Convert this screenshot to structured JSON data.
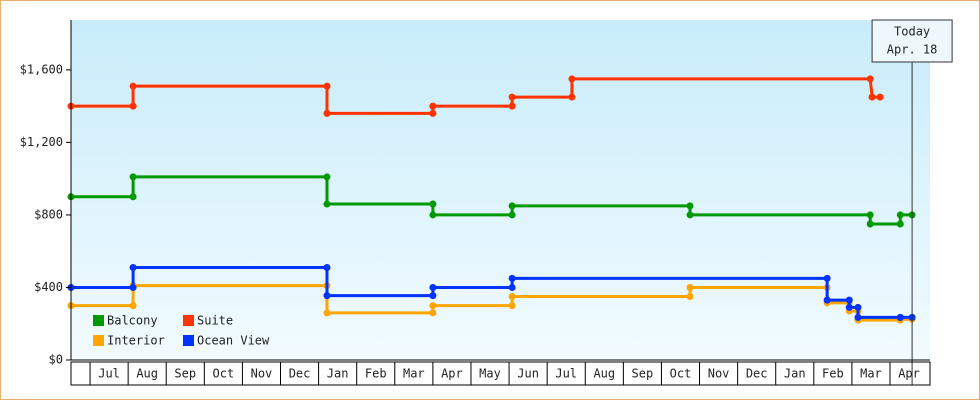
{
  "chart_data": {
    "type": "line",
    "step": true,
    "xlim": [
      -0.5,
      22.05
    ],
    "xticks": [
      {
        "value": 0.5,
        "label": "Jul"
      },
      {
        "value": 1.5,
        "label": "Aug"
      },
      {
        "value": 2.5,
        "label": "Sep"
      },
      {
        "value": 3.5,
        "label": "Oct"
      },
      {
        "value": 4.5,
        "label": "Nov"
      },
      {
        "value": 5.5,
        "label": "Dec"
      },
      {
        "value": 6.5,
        "label": "Jan"
      },
      {
        "value": 7.5,
        "label": "Feb"
      },
      {
        "value": 8.5,
        "label": "Mar"
      },
      {
        "value": 9.5,
        "label": "Apr"
      },
      {
        "value": 10.5,
        "label": "May"
      },
      {
        "value": 11.5,
        "label": "Jun"
      },
      {
        "value": 12.5,
        "label": "Jul"
      },
      {
        "value": 13.5,
        "label": "Aug"
      },
      {
        "value": 14.5,
        "label": "Sep"
      },
      {
        "value": 15.5,
        "label": "Oct"
      },
      {
        "value": 16.5,
        "label": "Nov"
      },
      {
        "value": 17.5,
        "label": "Dec"
      },
      {
        "value": 18.5,
        "label": "Jan"
      },
      {
        "value": 19.5,
        "label": "Feb"
      },
      {
        "value": 20.5,
        "label": "Mar"
      },
      {
        "value": 21.5,
        "label": "Apr"
      }
    ],
    "ylim": [
      0,
      1875
    ],
    "yticks": [
      {
        "value": 0,
        "label": "$0"
      },
      {
        "value": 400,
        "label": "$400"
      },
      {
        "value": 800,
        "label": "$800"
      },
      {
        "value": 1200,
        "label": "$1,200"
      },
      {
        "value": 1600,
        "label": "$1,600"
      }
    ],
    "legend": "lower left",
    "today": {
      "lines": [
        "Today",
        "Apr. 18"
      ],
      "x": 21.58
    },
    "series": [
      {
        "name": "Balcony",
        "color": "#009900",
        "x": [
          -0.5,
          1.13,
          1.13,
          6.22,
          6.22,
          9.0,
          9.0,
          11.08,
          11.08,
          15.75,
          15.75,
          20.48,
          20.48,
          21.27,
          21.27,
          21.58
        ],
        "values": [
          900,
          900,
          1010,
          1010,
          860,
          860,
          800,
          800,
          850,
          850,
          800,
          800,
          750,
          750,
          800,
          800
        ]
      },
      {
        "name": "Suite",
        "color": "#ff3300",
        "x": [
          -0.5,
          1.13,
          1.13,
          6.22,
          6.22,
          9.0,
          9.0,
          11.08,
          11.08,
          12.65,
          12.65,
          20.48,
          20.53,
          20.74
        ],
        "values": [
          1400,
          1400,
          1510,
          1510,
          1360,
          1360,
          1400,
          1400,
          1450,
          1450,
          1550,
          1550,
          1450,
          1450
        ]
      },
      {
        "name": "Interior",
        "color": "#ffa500",
        "x": [
          -0.5,
          1.13,
          1.13,
          6.22,
          6.22,
          9.0,
          9.0,
          11.08,
          11.08,
          15.75,
          15.75,
          19.35,
          19.35,
          19.93,
          19.93,
          20.16,
          20.16,
          21.27,
          21.27,
          21.58
        ],
        "values": [
          300,
          300,
          410,
          410,
          260,
          260,
          300,
          300,
          350,
          350,
          400,
          400,
          315,
          315,
          270,
          270,
          220,
          220,
          225,
          225
        ]
      },
      {
        "name": "Ocean View",
        "color": "#0033ff",
        "x": [
          -0.5,
          1.13,
          1.13,
          6.22,
          6.22,
          9.0,
          9.0,
          11.08,
          11.08,
          19.35,
          19.35,
          19.93,
          19.93,
          20.16,
          20.16,
          21.27,
          21.27,
          21.58
        ],
        "values": [
          400,
          400,
          510,
          510,
          355,
          355,
          400,
          400,
          450,
          450,
          330,
          330,
          290,
          290,
          235,
          235,
          235,
          235
        ]
      }
    ]
  }
}
